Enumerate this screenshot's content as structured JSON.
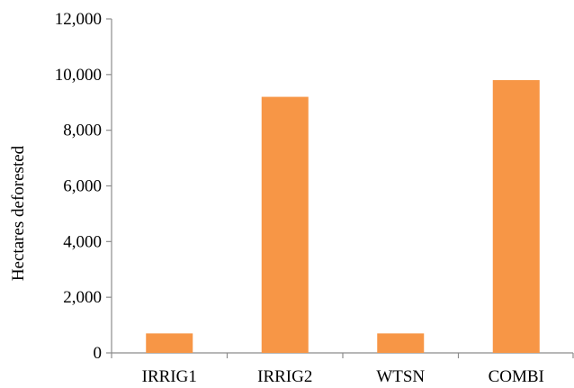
{
  "chart_data": {
    "type": "bar",
    "title": "",
    "xlabel": "",
    "ylabel": "Hectares deforested",
    "categories": [
      "IRRIG1",
      "IRRIG2",
      "WTSN",
      "COMBI"
    ],
    "values": [
      700,
      9200,
      700,
      9800
    ],
    "ylim": [
      0,
      12000
    ],
    "yticks": [
      0,
      2000,
      4000,
      6000,
      8000,
      10000,
      12000
    ],
    "ytick_labels": [
      "0",
      "2,000",
      "4,000",
      "6,000",
      "8,000",
      "10,000",
      "12,000"
    ],
    "grid": false,
    "legend": "none",
    "colors": {
      "bar": "#F79646",
      "axis": "#8C8C8C",
      "text": "#000000"
    }
  }
}
